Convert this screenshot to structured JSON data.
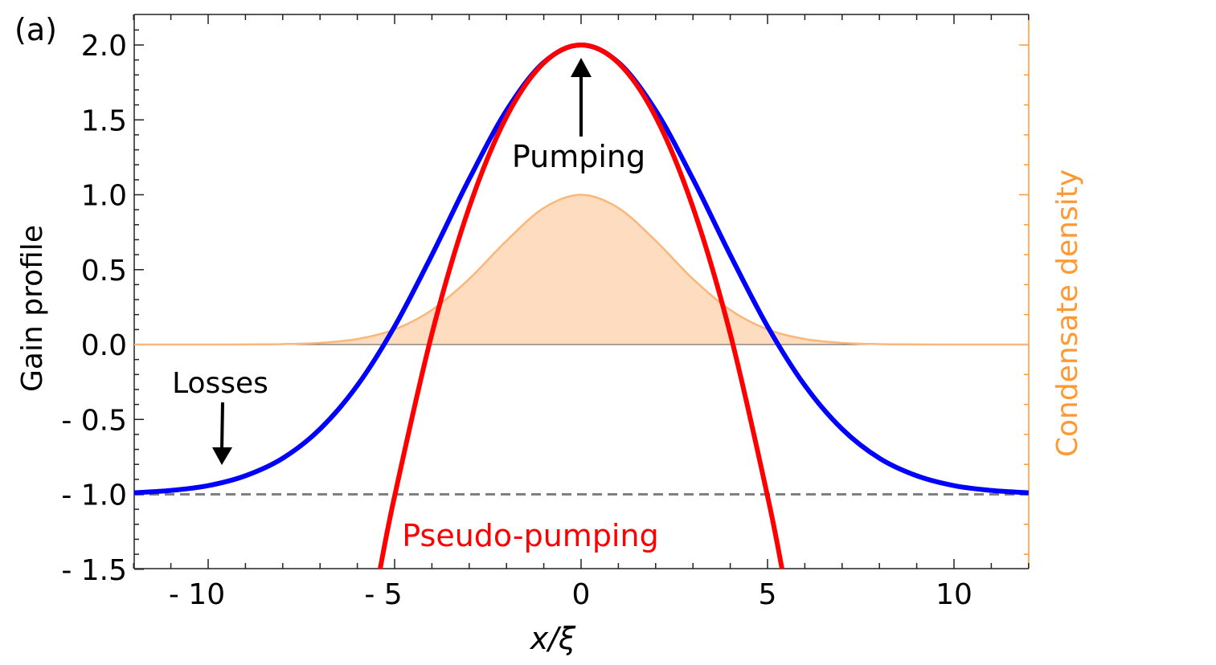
{
  "chart_data": {
    "type": "line",
    "panel_label": "(a)",
    "xlabel": "x/ξ",
    "ylabel": "Gain profile",
    "y2label": "Condensate density",
    "xlim": [
      -12,
      12
    ],
    "ylim": [
      -1.5,
      2.1
    ],
    "xticks": [
      -10,
      -5,
      0,
      5,
      10
    ],
    "xtick_labels": [
      "- 10",
      "- 5",
      "0",
      "5",
      "10"
    ],
    "yticks": [
      -1.5,
      -1.0,
      -0.5,
      0.0,
      0.5,
      1.0,
      1.5,
      2.0
    ],
    "ytick_labels": [
      "- 1.5",
      "- 1.0",
      "- 0.5",
      "0.0",
      "0.5",
      "1.0",
      "1.5",
      "2.0"
    ],
    "grid": false,
    "series": [
      {
        "key": "gain",
        "color": "#0000ff",
        "x": [
          -12,
          -11,
          -10,
          -9,
          -8,
          -7,
          -6,
          -5,
          -4,
          -3,
          -2,
          -1,
          0,
          1,
          2,
          3,
          4,
          5,
          6,
          7,
          8,
          9,
          10,
          11,
          12
        ],
        "y": [
          -0.99,
          -0.974,
          -0.942,
          -0.876,
          -0.759,
          -0.564,
          -0.273,
          0.121,
          0.598,
          1.105,
          1.563,
          1.884,
          2.0,
          1.884,
          1.563,
          1.105,
          0.598,
          0.121,
          -0.273,
          -0.564,
          -0.759,
          -0.876,
          -0.942,
          -0.974,
          -0.99
        ]
      },
      {
        "key": "pseudo",
        "color": "#ff0000",
        "x": [
          -5.4,
          -5,
          -4,
          -3,
          -2,
          -1,
          0,
          1,
          2,
          3,
          4,
          5,
          5.4
        ],
        "y": [
          -1.513,
          -1.012,
          0.072,
          0.916,
          1.52,
          1.88,
          2.0,
          1.88,
          1.52,
          0.916,
          0.072,
          -1.012,
          -1.513
        ]
      },
      {
        "key": "density",
        "color": "#fbb77a",
        "fill": "#fddcc0",
        "x": [
          -12,
          -11,
          -10,
          -9,
          -8,
          -7,
          -6,
          -5,
          -4,
          -3,
          -2,
          -1,
          0,
          1,
          2,
          3,
          4,
          5,
          6,
          7,
          8,
          9,
          10,
          11,
          12
        ],
        "y": [
          0,
          0,
          0,
          0.001,
          0.003,
          0.011,
          0.037,
          0.101,
          0.231,
          0.438,
          0.693,
          0.912,
          1.0,
          0.912,
          0.693,
          0.438,
          0.231,
          0.101,
          0.037,
          0.011,
          0.003,
          0.001,
          0,
          0,
          0
        ]
      }
    ],
    "reference_line": {
      "y": -1.0,
      "style": "dashed",
      "color": "#808080"
    },
    "annotations": {
      "pumping": {
        "text": "Pumping",
        "color": "#000000"
      },
      "losses": {
        "text": "Losses",
        "color": "#000000"
      },
      "pseudo_pumping": {
        "text": "Pseudo-pumping",
        "color": "#ff0000"
      }
    },
    "right_axis_color": "#ff9933"
  }
}
